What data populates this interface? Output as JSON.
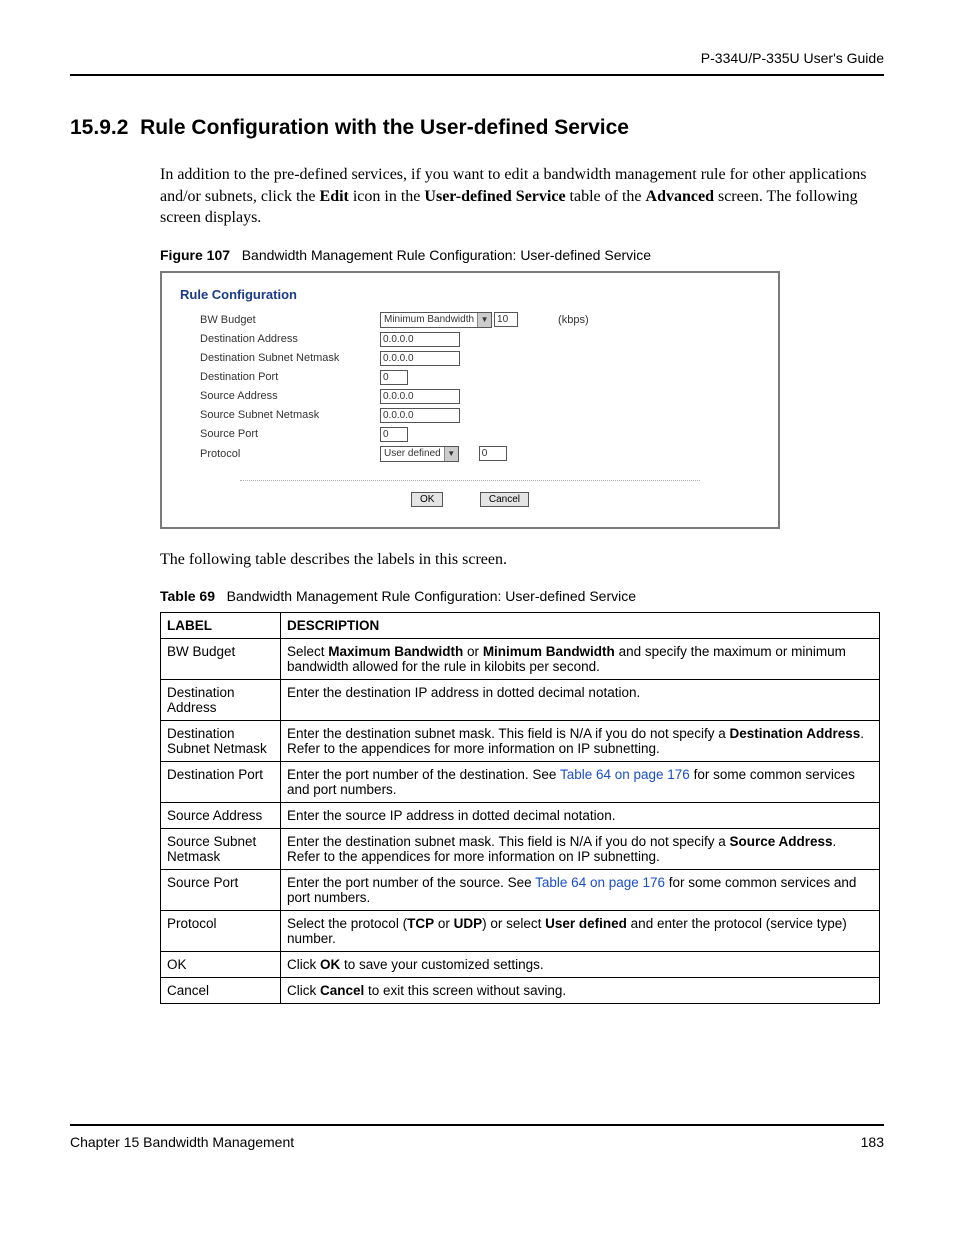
{
  "header": {
    "guide_title": "P-334U/P-335U User's Guide"
  },
  "section": {
    "number": "15.9.2",
    "title": "Rule Configuration with the User-defined Service"
  },
  "intro": {
    "text_pre": "In addition to the pre-defined services, if you want to edit a bandwidth management rule for other applications and/or subnets, click the ",
    "bold1": "Edit",
    "mid1": " icon in the ",
    "bold2": "User-defined Service",
    "mid2": " table of the ",
    "bold3": "Advanced",
    "tail": " screen. The following screen displays."
  },
  "figure": {
    "label": "Figure 107",
    "caption": "Bandwidth Management Rule Configuration: User-defined Service"
  },
  "panel": {
    "title": "Rule Configuration",
    "rows": {
      "bw_budget": {
        "label": "BW Budget",
        "select": "Minimum Bandwidth",
        "value": "10",
        "unit": "(kbps)"
      },
      "dest_addr": {
        "label": "Destination Address",
        "value": "0.0.0.0"
      },
      "dest_mask": {
        "label": "Destination Subnet Netmask",
        "value": "0.0.0.0"
      },
      "dest_port": {
        "label": "Destination Port",
        "value": "0"
      },
      "src_addr": {
        "label": "Source Address",
        "value": "0.0.0.0"
      },
      "src_mask": {
        "label": "Source Subnet Netmask",
        "value": "0.0.0.0"
      },
      "src_port": {
        "label": "Source Port",
        "value": "0"
      },
      "protocol": {
        "label": "Protocol",
        "select": "User defined",
        "value": "0"
      }
    },
    "buttons": {
      "ok": "OK",
      "cancel": "Cancel"
    }
  },
  "after_figure": "The following table describes the labels in this screen.",
  "table_caption": {
    "label": "Table 69",
    "caption": "Bandwidth Management Rule Configuration: User-defined Service"
  },
  "table": {
    "head": {
      "label": "LABEL",
      "desc": "DESCRIPTION"
    },
    "rows": [
      {
        "label": "BW Budget",
        "parts": [
          {
            "t": "Select "
          },
          {
            "t": "Maximum Bandwidth",
            "b": true
          },
          {
            "t": " or "
          },
          {
            "t": "Minimum Bandwidth",
            "b": true
          },
          {
            "t": " and specify the maximum or minimum bandwidth allowed for the rule in kilobits per second."
          }
        ]
      },
      {
        "label": "Destination Address",
        "parts": [
          {
            "t": "Enter the destination IP address in dotted decimal notation."
          }
        ]
      },
      {
        "label": "Destination Subnet Netmask",
        "parts": [
          {
            "t": "Enter the destination subnet mask. This field is N/A if you do not specify a "
          },
          {
            "t": "Destination Address",
            "b": true
          },
          {
            "t": ". Refer to the appendices for more information on IP subnetting."
          }
        ]
      },
      {
        "label": "Destination Port",
        "parts": [
          {
            "t": "Enter the port number of the destination. See "
          },
          {
            "t": "Table 64 on page 176",
            "link": true
          },
          {
            "t": " for some common services and port numbers."
          }
        ]
      },
      {
        "label": "Source Address",
        "parts": [
          {
            "t": "Enter the source IP address in dotted decimal notation."
          }
        ]
      },
      {
        "label": "Source Subnet Netmask",
        "parts": [
          {
            "t": "Enter the destination subnet mask. This field is N/A if you do not specify a "
          },
          {
            "t": "Source Address",
            "b": true
          },
          {
            "t": ". Refer to the appendices for more information on IP subnetting."
          }
        ]
      },
      {
        "label": "Source Port",
        "parts": [
          {
            "t": "Enter the port number of the source. See "
          },
          {
            "t": "Table 64 on page 176",
            "link": true
          },
          {
            "t": " for some common services and port numbers."
          }
        ]
      },
      {
        "label": "Protocol",
        "parts": [
          {
            "t": "Select the protocol ("
          },
          {
            "t": "TCP",
            "b": true
          },
          {
            "t": " or "
          },
          {
            "t": "UDP",
            "b": true
          },
          {
            "t": ") or select "
          },
          {
            "t": "User defined",
            "b": true
          },
          {
            "t": " and enter the protocol (service type) number."
          }
        ]
      },
      {
        "label": "OK",
        "parts": [
          {
            "t": "Click "
          },
          {
            "t": "OK",
            "b": true
          },
          {
            "t": " to save your customized settings."
          }
        ]
      },
      {
        "label": "Cancel",
        "parts": [
          {
            "t": "Click "
          },
          {
            "t": "Cancel",
            "b": true
          },
          {
            "t": " to exit this screen without saving."
          }
        ]
      }
    ]
  },
  "footer": {
    "chapter": "Chapter 15 Bandwidth Management",
    "page": "183"
  },
  "colors": {
    "link": "#1a4ec8",
    "panel_title": "#1a3a8a"
  }
}
